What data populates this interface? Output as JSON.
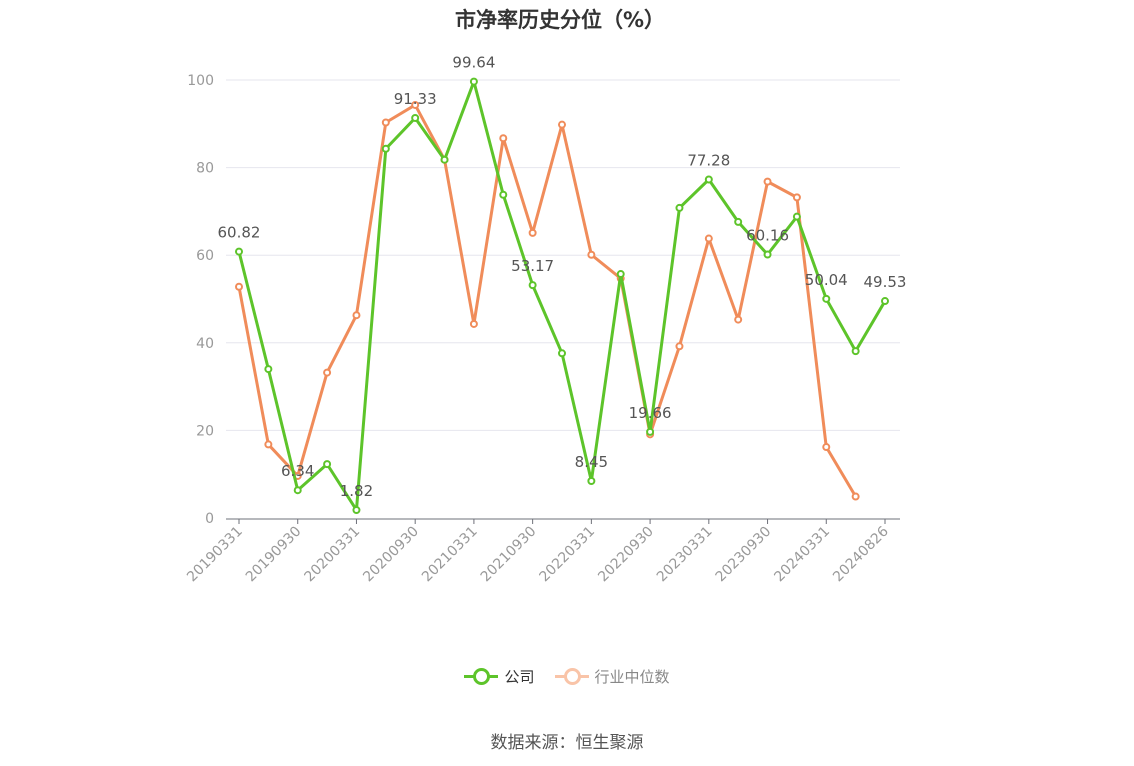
{
  "chart_data": {
    "type": "line",
    "title": "市净率历史分位（%）",
    "xlabel": "",
    "ylabel": "",
    "ylim": [
      0,
      100
    ],
    "yticks": [
      0,
      20,
      40,
      60,
      80,
      100
    ],
    "grid": true,
    "legend_position": "bottom",
    "x": [
      "20190331",
      "20190630",
      "20190930",
      "20191231",
      "20200331",
      "20200630",
      "20200930",
      "20201231",
      "20210331",
      "20210630",
      "20210930",
      "20211231",
      "20220331",
      "20220630",
      "20220930",
      "20221231",
      "20230331",
      "20230630",
      "20230930",
      "20231231",
      "20240331",
      "20240630",
      "20240826"
    ],
    "xtick_labels": [
      "20190331",
      "20190930",
      "20200331",
      "20200930",
      "20210331",
      "20210930",
      "20220331",
      "20220930",
      "20230331",
      "20230930",
      "20240331",
      "20240826"
    ],
    "series": [
      {
        "name": "公司",
        "color": "#5dc42a",
        "values": [
          60.82,
          34,
          6.34,
          12.3,
          1.82,
          84.3,
          91.33,
          81.8,
          99.64,
          73.8,
          53.17,
          37.6,
          8.45,
          55.7,
          19.66,
          70.8,
          77.28,
          67.6,
          60.16,
          68.8,
          50.04,
          38.1,
          49.53
        ],
        "labels": {
          "0": "60.82",
          "2": "6.34",
          "4": "1.82",
          "6": "91.33",
          "8": "99.64",
          "10": "53.17",
          "12": "8.45",
          "14": "19.66",
          "16": "77.28",
          "18": "60.16",
          "20": "50.04",
          "22": "49.53"
        }
      },
      {
        "name": "行业中位数",
        "color": "#f08c5a",
        "values": [
          52.8,
          16.8,
          9.6,
          33.2,
          46.3,
          90.3,
          94.3,
          81.8,
          44.3,
          86.7,
          65.1,
          89.8,
          60.1,
          54.7,
          19.1,
          39.2,
          63.8,
          45.3,
          76.8,
          73.2,
          16.2,
          4.9,
          null
        ]
      }
    ]
  },
  "source_text": "数据来源：恒生聚源"
}
